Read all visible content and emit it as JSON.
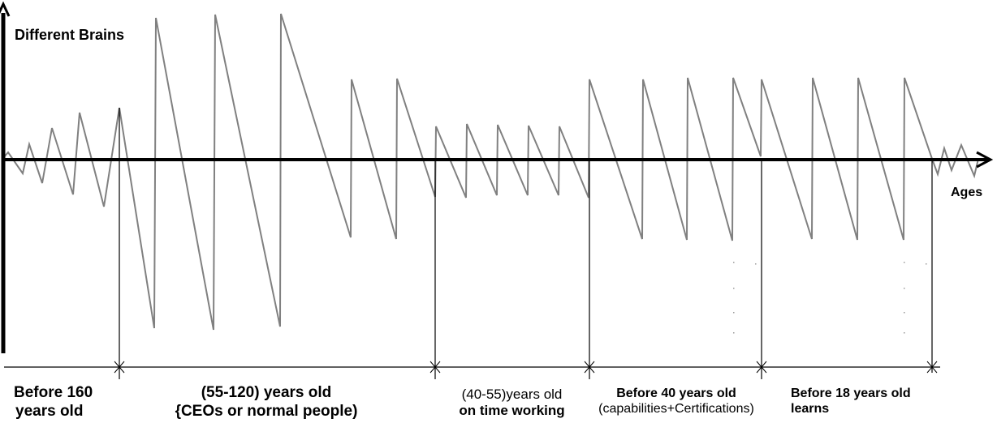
{
  "diagram": {
    "y_axis_label": "Different Brains",
    "x_axis_label": "Ages",
    "segments": [
      {
        "line1": "Before 160",
        "line2": "years old"
      },
      {
        "line1": "(55-120) years old",
        "line2": "{CEOs or normal people)"
      },
      {
        "line1": "(40-55)years old",
        "line2": "on time working"
      },
      {
        "line1": "Before 40 years old",
        "line2": "(capabilities+Certifications)"
      },
      {
        "line1": "Before 18 years old",
        "line2": "learns"
      }
    ],
    "colors": {
      "axis": "#000000",
      "wave": "#808080",
      "text": "#000000"
    }
  }
}
